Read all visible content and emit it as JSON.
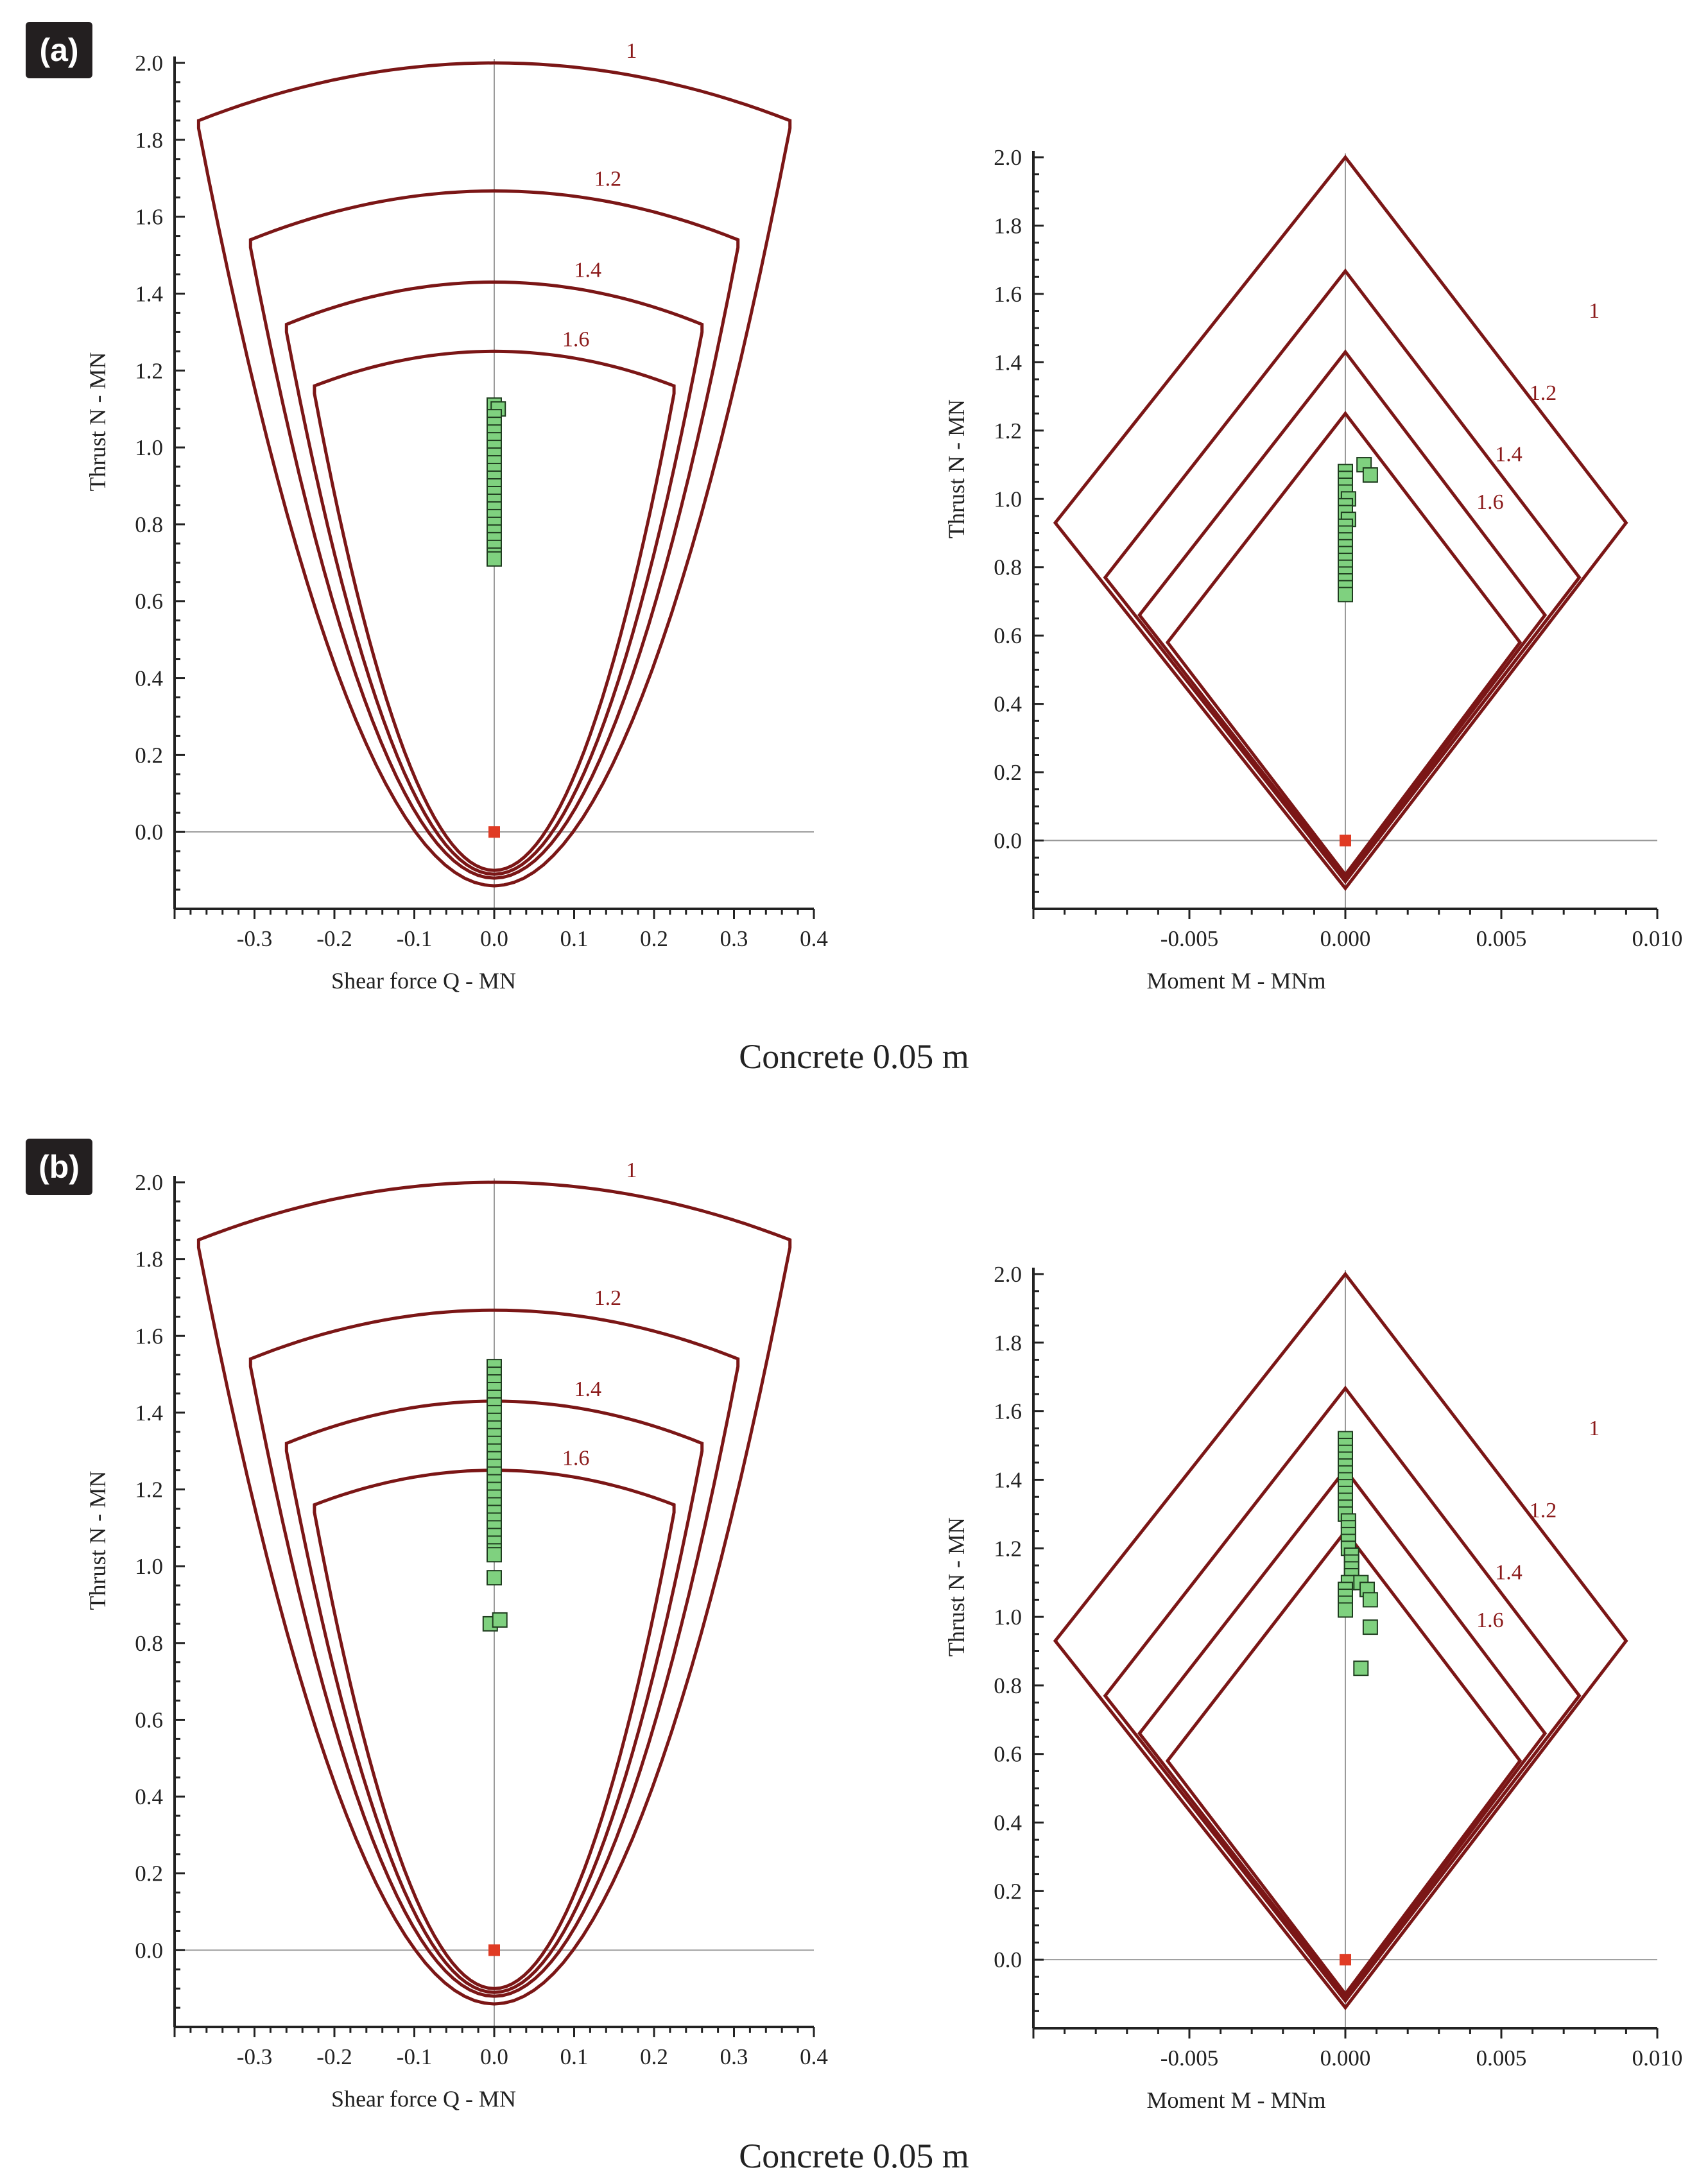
{
  "panels": [
    {
      "label": "(a)",
      "caption": "Concrete 0.05 m"
    },
    {
      "label": "(b)",
      "caption": "Concrete 0.05 m"
    }
  ],
  "colors": {
    "envelope": "#7b1616",
    "point_fill": "#7fd17f",
    "point_stroke": "#1f3d1f",
    "origin_point": "#e03b24",
    "axis": "#222222",
    "zero_line": "#9a9a9a"
  },
  "chart_data": [
    {
      "panel": "(a)",
      "type": "scatter",
      "title": "",
      "xlabel": "Shear force Q - MN",
      "ylabel": "Thrust N - MN",
      "xlim": [
        -0.4,
        0.4
      ],
      "ylim": [
        -0.2,
        2.0
      ],
      "xticks": [
        "-0.3",
        "-0.2",
        "-0.1",
        "0.0",
        "0.1",
        "0.2",
        "0.3",
        "0.4"
      ],
      "yticks": [
        "0.0",
        "0.2",
        "0.4",
        "0.6",
        "0.8",
        "1.0",
        "1.2",
        "1.4",
        "1.6",
        "1.8",
        "2.0"
      ],
      "envelopes": [
        {
          "label": "1",
          "top": 2.0,
          "shoulder_q": 0.37,
          "shoulder_n": 1.85,
          "bottom": -0.14
        },
        {
          "label": "1.2",
          "top": 1.667,
          "shoulder_q": 0.305,
          "shoulder_n": 1.54,
          "bottom": -0.12
        },
        {
          "label": "1.4",
          "top": 1.43,
          "shoulder_q": 0.26,
          "shoulder_n": 1.32,
          "bottom": -0.11
        },
        {
          "label": "1.6",
          "top": 1.25,
          "shoulder_q": 0.225,
          "shoulder_n": 1.16,
          "bottom": -0.1
        }
      ],
      "points": [
        [
          0.0,
          1.11
        ],
        [
          0.005,
          1.1
        ],
        [
          0.0,
          1.08
        ],
        [
          0.0,
          1.06
        ],
        [
          0.0,
          1.04
        ],
        [
          0.0,
          1.02
        ],
        [
          0.0,
          1.0
        ],
        [
          0.0,
          0.98
        ],
        [
          0.0,
          0.96
        ],
        [
          0.0,
          0.94
        ],
        [
          0.0,
          0.92
        ],
        [
          0.0,
          0.9
        ],
        [
          0.0,
          0.88
        ],
        [
          0.0,
          0.86
        ],
        [
          0.0,
          0.84
        ],
        [
          0.0,
          0.82
        ],
        [
          0.0,
          0.8
        ],
        [
          0.0,
          0.78
        ],
        [
          0.0,
          0.76
        ],
        [
          0.0,
          0.74
        ],
        [
          0.0,
          0.72
        ],
        [
          0.0,
          0.71
        ]
      ],
      "origin_point": [
        0.0,
        0.0
      ]
    },
    {
      "panel": "(a)",
      "type": "scatter",
      "title": "",
      "xlabel": "Moment M - MNm",
      "ylabel": "Thrust N - MN",
      "xlim": [
        -0.01,
        0.01
      ],
      "ylim": [
        -0.2,
        2.0
      ],
      "xticks": [
        "-0.005",
        "0.000",
        "0.005",
        "0.010"
      ],
      "yticks": [
        "0.0",
        "0.2",
        "0.4",
        "0.6",
        "0.8",
        "1.0",
        "1.2",
        "1.4",
        "1.6",
        "1.8",
        "2.0"
      ],
      "envelopes": [
        {
          "label": "1",
          "top": 2.0,
          "left_m": -0.0093,
          "right_m": 0.009,
          "corner_n": 0.93,
          "bottom": -0.14
        },
        {
          "label": "1.2",
          "top": 1.667,
          "left_m": -0.0077,
          "right_m": 0.0075,
          "corner_n": 0.77,
          "bottom": -0.12
        },
        {
          "label": "1.4",
          "top": 1.43,
          "left_m": -0.0066,
          "right_m": 0.0064,
          "corner_n": 0.66,
          "bottom": -0.11
        },
        {
          "label": "1.6",
          "top": 1.25,
          "left_m": -0.0057,
          "right_m": 0.0056,
          "corner_n": 0.58,
          "bottom": -0.1
        }
      ],
      "points": [
        [
          0.0006,
          1.1
        ],
        [
          0.0008,
          1.07
        ],
        [
          0.0,
          1.08
        ],
        [
          0.0,
          1.06
        ],
        [
          0.0,
          1.04
        ],
        [
          0.0,
          1.02
        ],
        [
          0.0001,
          1.0
        ],
        [
          0.0,
          0.98
        ],
        [
          0.0,
          0.96
        ],
        [
          0.0001,
          0.94
        ],
        [
          0.0,
          0.92
        ],
        [
          0.0,
          0.9
        ],
        [
          0.0,
          0.88
        ],
        [
          0.0,
          0.86
        ],
        [
          0.0,
          0.84
        ],
        [
          0.0,
          0.82
        ],
        [
          0.0,
          0.8
        ],
        [
          0.0,
          0.78
        ],
        [
          0.0,
          0.76
        ],
        [
          0.0,
          0.74
        ],
        [
          0.0,
          0.72
        ]
      ],
      "origin_point": [
        0.0,
        0.0
      ]
    },
    {
      "panel": "(b)",
      "type": "scatter",
      "title": "",
      "xlabel": "Shear force Q - MN",
      "ylabel": "Thrust N - MN",
      "xlim": [
        -0.4,
        0.4
      ],
      "ylim": [
        -0.2,
        2.0
      ],
      "xticks": [
        "-0.3",
        "-0.2",
        "-0.1",
        "0.0",
        "0.1",
        "0.2",
        "0.3",
        "0.4"
      ],
      "yticks": [
        "0.0",
        "0.2",
        "0.4",
        "0.6",
        "0.8",
        "1.0",
        "1.2",
        "1.4",
        "1.6",
        "1.8",
        "2.0"
      ],
      "envelopes": [
        {
          "label": "1",
          "top": 2.0,
          "shoulder_q": 0.37,
          "shoulder_n": 1.85,
          "bottom": -0.14
        },
        {
          "label": "1.2",
          "top": 1.667,
          "shoulder_q": 0.305,
          "shoulder_n": 1.54,
          "bottom": -0.12
        },
        {
          "label": "1.4",
          "top": 1.43,
          "shoulder_q": 0.26,
          "shoulder_n": 1.32,
          "bottom": -0.11
        },
        {
          "label": "1.6",
          "top": 1.25,
          "shoulder_q": 0.225,
          "shoulder_n": 1.16,
          "bottom": -0.1
        }
      ],
      "points": [
        [
          0.0,
          1.52
        ],
        [
          0.0,
          1.5
        ],
        [
          0.0,
          1.48
        ],
        [
          0.0,
          1.46
        ],
        [
          0.0,
          1.44
        ],
        [
          0.0,
          1.42
        ],
        [
          0.0,
          1.4
        ],
        [
          0.0,
          1.38
        ],
        [
          0.0,
          1.36
        ],
        [
          0.0,
          1.34
        ],
        [
          0.0,
          1.32
        ],
        [
          0.0,
          1.3
        ],
        [
          0.0,
          1.28
        ],
        [
          0.0,
          1.26
        ],
        [
          0.0,
          1.24
        ],
        [
          0.0,
          1.22
        ],
        [
          0.0,
          1.2
        ],
        [
          0.0,
          1.18
        ],
        [
          0.0,
          1.16
        ],
        [
          0.0,
          1.14
        ],
        [
          0.0,
          1.12
        ],
        [
          0.0,
          1.1
        ],
        [
          0.0,
          1.08
        ],
        [
          0.0,
          1.06
        ],
        [
          0.0,
          1.04
        ],
        [
          0.0,
          1.03
        ],
        [
          0.0,
          0.97
        ],
        [
          -0.005,
          0.85
        ],
        [
          0.007,
          0.86
        ]
      ],
      "origin_point": [
        0.0,
        0.0
      ]
    },
    {
      "panel": "(b)",
      "type": "scatter",
      "title": "",
      "xlabel": "Moment M - MNm",
      "ylabel": "Thrust N - MN",
      "xlim": [
        -0.01,
        0.01
      ],
      "ylim": [
        -0.2,
        2.0
      ],
      "xticks": [
        "-0.005",
        "0.000",
        "0.005",
        "0.010"
      ],
      "yticks": [
        "0.0",
        "0.2",
        "0.4",
        "0.6",
        "0.8",
        "1.0",
        "1.2",
        "1.4",
        "1.6",
        "1.8",
        "2.0"
      ],
      "envelopes": [
        {
          "label": "1",
          "top": 2.0,
          "left_m": -0.0093,
          "right_m": 0.009,
          "corner_n": 0.93,
          "bottom": -0.14
        },
        {
          "label": "1.2",
          "top": 1.667,
          "left_m": -0.0077,
          "right_m": 0.0075,
          "corner_n": 0.77,
          "bottom": -0.12
        },
        {
          "label": "1.4",
          "top": 1.43,
          "left_m": -0.0066,
          "right_m": 0.0064,
          "corner_n": 0.66,
          "bottom": -0.11
        },
        {
          "label": "1.6",
          "top": 1.25,
          "left_m": -0.0057,
          "right_m": 0.0056,
          "corner_n": 0.58,
          "bottom": -0.1
        }
      ],
      "points": [
        [
          0.0,
          1.52
        ],
        [
          0.0,
          1.5
        ],
        [
          0.0,
          1.48
        ],
        [
          0.0,
          1.46
        ],
        [
          0.0,
          1.44
        ],
        [
          0.0,
          1.42
        ],
        [
          0.0,
          1.4
        ],
        [
          0.0,
          1.38
        ],
        [
          0.0,
          1.36
        ],
        [
          0.0,
          1.34
        ],
        [
          0.0,
          1.32
        ],
        [
          0.0,
          1.3
        ],
        [
          0.0001,
          1.28
        ],
        [
          0.0001,
          1.26
        ],
        [
          0.0001,
          1.24
        ],
        [
          0.0001,
          1.22
        ],
        [
          0.0001,
          1.2
        ],
        [
          0.0002,
          1.18
        ],
        [
          0.0002,
          1.16
        ],
        [
          0.0002,
          1.14
        ],
        [
          0.0002,
          1.12
        ],
        [
          0.0001,
          1.1
        ],
        [
          0.0,
          1.08
        ],
        [
          0.0,
          1.06
        ],
        [
          0.0,
          1.04
        ],
        [
          0.0,
          1.02
        ],
        [
          0.0005,
          1.1
        ],
        [
          0.0007,
          1.08
        ],
        [
          0.0008,
          1.05
        ],
        [
          0.0008,
          0.97
        ],
        [
          0.0005,
          0.85
        ]
      ],
      "origin_point": [
        0.0,
        0.0
      ]
    }
  ]
}
